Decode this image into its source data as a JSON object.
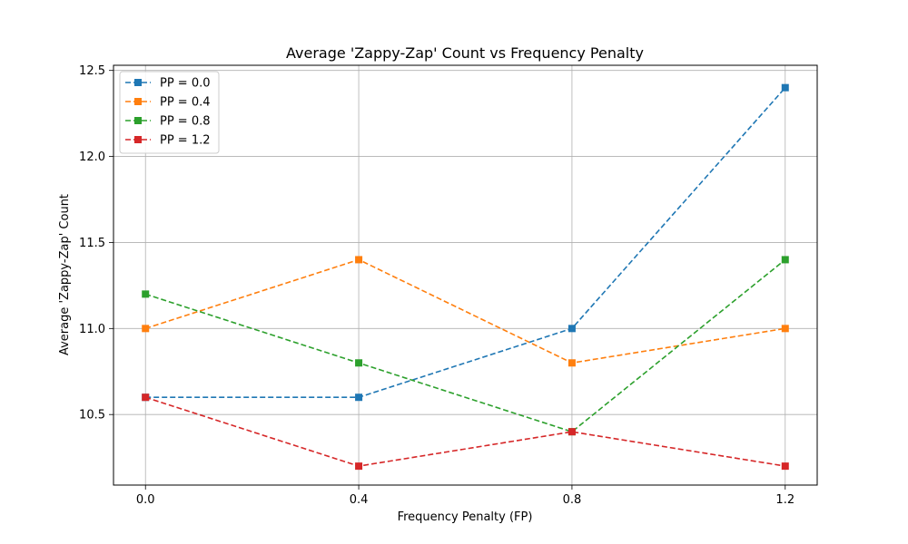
{
  "chart_data": {
    "type": "line",
    "title": "Average 'Zappy-Zap' Count vs Frequency Penalty",
    "xlabel": "Frequency Penalty (FP)",
    "ylabel": "Average 'Zappy-Zap' Count",
    "x": [
      0.0,
      0.4,
      0.8,
      1.2
    ],
    "x_ticks": [
      "0.0",
      "0.4",
      "0.8",
      "1.2"
    ],
    "y_ticks": [
      "10.5",
      "11.0",
      "11.5",
      "12.0",
      "12.5"
    ],
    "xlim": [
      -0.06,
      1.26
    ],
    "ylim": [
      10.09,
      12.53
    ],
    "grid": true,
    "legend_position": "top-left",
    "line_style": "dashed",
    "marker": "square",
    "series": [
      {
        "name": "PP = 0.0",
        "color": "#1f77b4",
        "values": [
          10.6,
          10.6,
          11.0,
          12.4
        ]
      },
      {
        "name": "PP = 0.4",
        "color": "#ff7f0e",
        "values": [
          11.0,
          11.4,
          10.8,
          11.0
        ]
      },
      {
        "name": "PP = 0.8",
        "color": "#2ca02c",
        "values": [
          11.2,
          10.8,
          10.4,
          11.4
        ]
      },
      {
        "name": "PP = 1.2",
        "color": "#d62728",
        "values": [
          10.6,
          10.2,
          10.4,
          10.2
        ]
      }
    ]
  }
}
